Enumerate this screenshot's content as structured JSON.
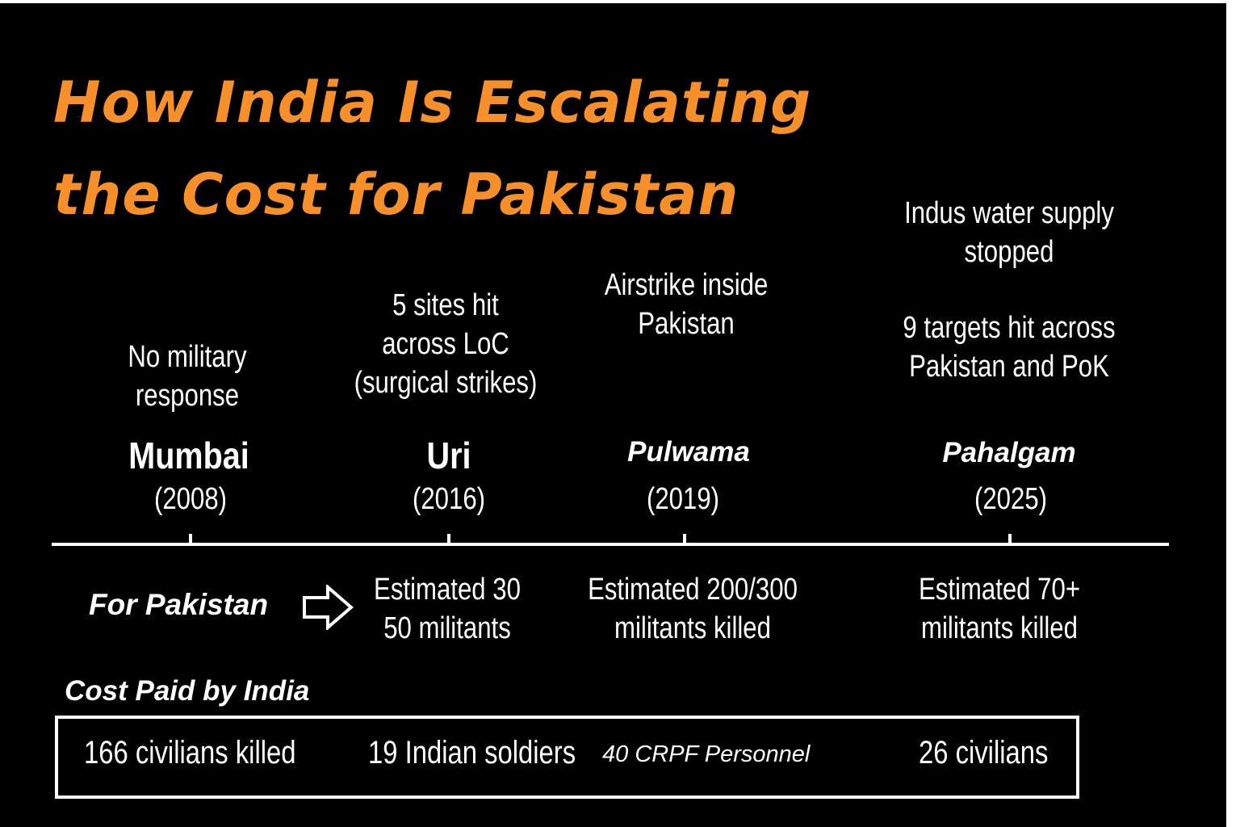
{
  "title": {
    "line1": "How India Is Escalating",
    "line2": "the Cost for Pakistan"
  },
  "colors": {
    "background": "#000000",
    "accent": "#f7902a",
    "text": "#ffffff"
  },
  "events": [
    {
      "name": "Mumbai",
      "year": "(2008)",
      "response": [
        "No military",
        "response"
      ],
      "outcome": [],
      "cost": "166 civilians killed"
    },
    {
      "name": "Uri",
      "year": "(2016)",
      "response": [
        "5 sites hit",
        "across LoC",
        "(surgical strikes)"
      ],
      "outcome": [
        "Estimated 30",
        "50 militants"
      ],
      "cost": "19 Indian soldiers"
    },
    {
      "name": "Pulwama",
      "year": "(2019)",
      "response": [
        "Airstrike inside",
        "Pakistan"
      ],
      "outcome": [
        "Estimated 200/300",
        "militants killed"
      ],
      "cost": "40 CRPF Personnel"
    },
    {
      "name": "Pahalgam",
      "year": "(2025)",
      "response": [
        "Indus water supply",
        "stopped",
        "",
        "9 targets hit across",
        "Pakistan and PoK"
      ],
      "outcome": [
        "Estimated 70+",
        "militants killed"
      ],
      "cost": "26 civilians"
    }
  ],
  "for_pakistan_label": "For Pakistan",
  "cost_label": "Cost Paid by India",
  "icons": {
    "arrow": "right-arrow-outline-icon"
  }
}
